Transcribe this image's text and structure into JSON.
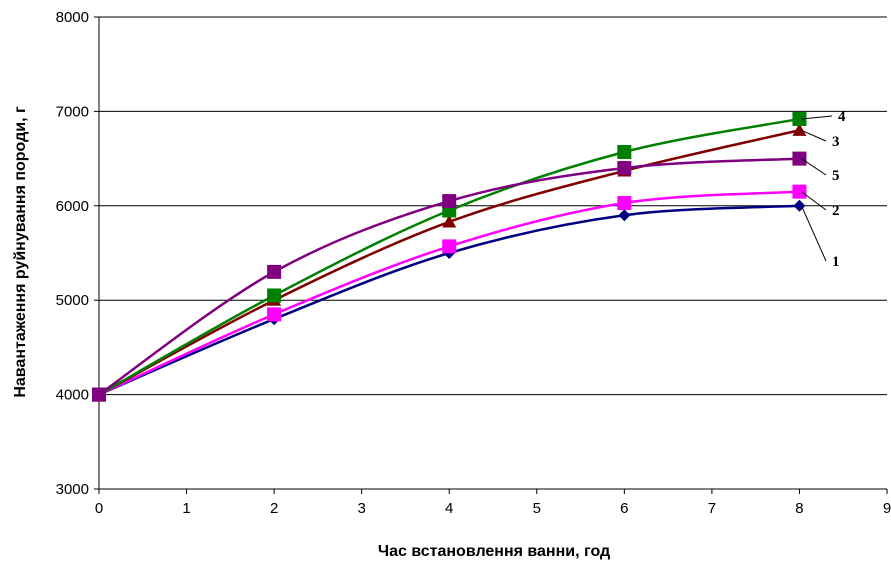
{
  "chart_data": {
    "type": "line",
    "xlabel": "Час встановлення ванни, год",
    "ylabel": "Навантаження руйнування породи, г",
    "xlim": [
      0,
      9
    ],
    "ylim": [
      3000,
      8000
    ],
    "x_ticks": [
      "0",
      "1",
      "2",
      "3",
      "4",
      "5",
      "6",
      "7",
      "8",
      "9"
    ],
    "y_ticks": [
      "3000",
      "4000",
      "5000",
      "6000",
      "7000",
      "8000"
    ],
    "grid": "horizontal major gridlines",
    "legend": "none; series labelled by numbers at line ends (right)",
    "x": [
      0,
      2,
      4,
      6,
      8
    ],
    "series": [
      {
        "name": "1",
        "color": "#000080",
        "marker": "diamond",
        "values": [
          4000,
          4800,
          5500,
          5900,
          6000
        ]
      },
      {
        "name": "2",
        "color": "#ff00ff",
        "marker": "square",
        "values": [
          4000,
          4850,
          5570,
          6030,
          6150
        ]
      },
      {
        "name": "3",
        "color": "#800000",
        "marker": "triangle",
        "values": [
          4000,
          5000,
          5830,
          6370,
          6800
        ]
      },
      {
        "name": "4",
        "color": "#008000",
        "marker": "square",
        "values": [
          4000,
          5050,
          5950,
          6570,
          6920
        ]
      },
      {
        "name": "5",
        "color": "#800080",
        "marker": "square",
        "values": [
          4000,
          5300,
          6050,
          6400,
          6500
        ]
      }
    ]
  }
}
